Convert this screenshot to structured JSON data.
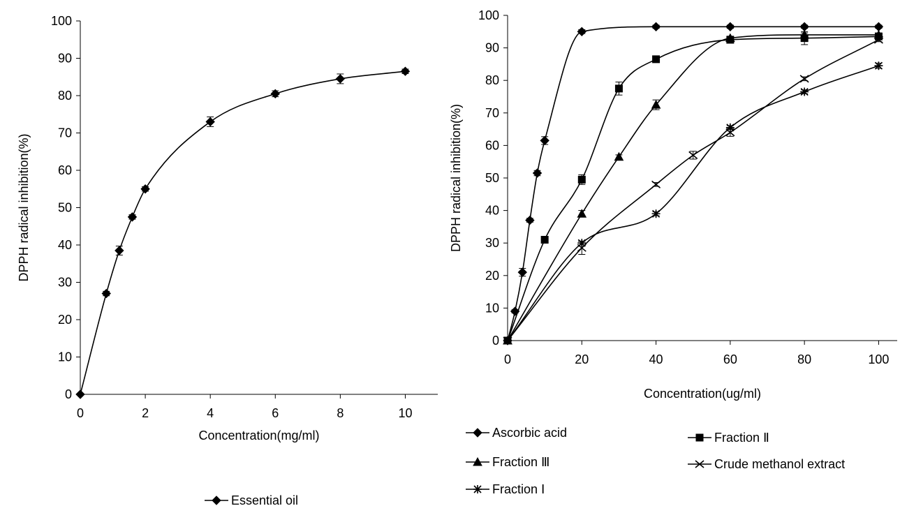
{
  "chart_data": [
    {
      "type": "line",
      "xlabel": "Concentration(mg/ml)",
      "ylabel": "DPPH radical inhibition(%)",
      "xlim": [
        0,
        11
      ],
      "ylim": [
        0,
        100
      ],
      "xticks": [
        0,
        2,
        4,
        6,
        8,
        10
      ],
      "yticks": [
        0,
        10,
        20,
        30,
        40,
        50,
        60,
        70,
        80,
        90,
        100
      ],
      "legend_position": "bottom",
      "grid": false,
      "series": [
        {
          "name": "Essential oil",
          "marker": "diamond",
          "x": [
            0,
            0.8,
            1.2,
            1.6,
            2,
            4,
            6,
            8,
            10
          ],
          "y": [
            0,
            27,
            38.5,
            47.5,
            55,
            73,
            80.5,
            84.5,
            86.5
          ],
          "err": [
            0,
            0.6,
            1.2,
            0.6,
            0.6,
            1.3,
            0.8,
            1.3,
            0.6
          ]
        }
      ]
    },
    {
      "type": "line",
      "xlabel": "Concentration(ug/ml)",
      "ylabel": "DPPH radical inhibition(%)",
      "xlim": [
        0,
        105
      ],
      "ylim": [
        0,
        100
      ],
      "xticks": [
        0,
        20,
        40,
        60,
        80,
        100
      ],
      "yticks": [
        0,
        10,
        20,
        30,
        40,
        50,
        60,
        70,
        80,
        90,
        100
      ],
      "legend_position": "bottom",
      "grid": false,
      "series": [
        {
          "name": "Ascorbic acid",
          "marker": "diamond",
          "x": [
            0,
            2,
            4,
            6,
            8,
            10,
            20,
            40,
            60,
            80,
            100
          ],
          "y": [
            0,
            9,
            21,
            37,
            51.5,
            61.5,
            95,
            96.5,
            96.5,
            96.5,
            96.5
          ],
          "err": [
            0,
            0.5,
            1.2,
            0.6,
            0.8,
            1.2,
            0.6,
            0.5,
            0.5,
            0.5,
            0.5
          ]
        },
        {
          "name": "Fraction Ⅱ",
          "marker": "square",
          "x": [
            0,
            10,
            20,
            30,
            40,
            60,
            80,
            100
          ],
          "y": [
            0,
            31,
            49.5,
            77.5,
            86.5,
            92.5,
            93,
            93.5
          ],
          "err": [
            0,
            1.0,
            1.5,
            2.0,
            0.6,
            1.0,
            2.0,
            0.6
          ]
        },
        {
          "name": "Fraction Ⅲ",
          "marker": "triangle",
          "x": [
            0,
            20,
            30,
            40,
            60,
            80,
            100
          ],
          "y": [
            0,
            39,
            56.5,
            72.5,
            93,
            94,
            94
          ],
          "err": [
            0,
            1.0,
            0.6,
            1.5,
            0.6,
            0.6,
            0.6
          ]
        },
        {
          "name": "Crude methanol extract",
          "marker": "x",
          "x": [
            0,
            20,
            40,
            50,
            60,
            80,
            100
          ],
          "y": [
            0,
            28.5,
            48,
            57,
            64,
            80.5,
            92.5
          ],
          "err": [
            0,
            2.0,
            0.6,
            1.2,
            1.2,
            0.6,
            0.6
          ]
        },
        {
          "name": "Fraction Ⅰ",
          "marker": "star",
          "x": [
            0,
            20,
            40,
            60,
            80,
            100
          ],
          "y": [
            0,
            30,
            39,
            65.5,
            76.5,
            84.5
          ],
          "err": [
            0,
            0.6,
            0.6,
            0.6,
            0.6,
            0.8
          ]
        }
      ]
    }
  ]
}
